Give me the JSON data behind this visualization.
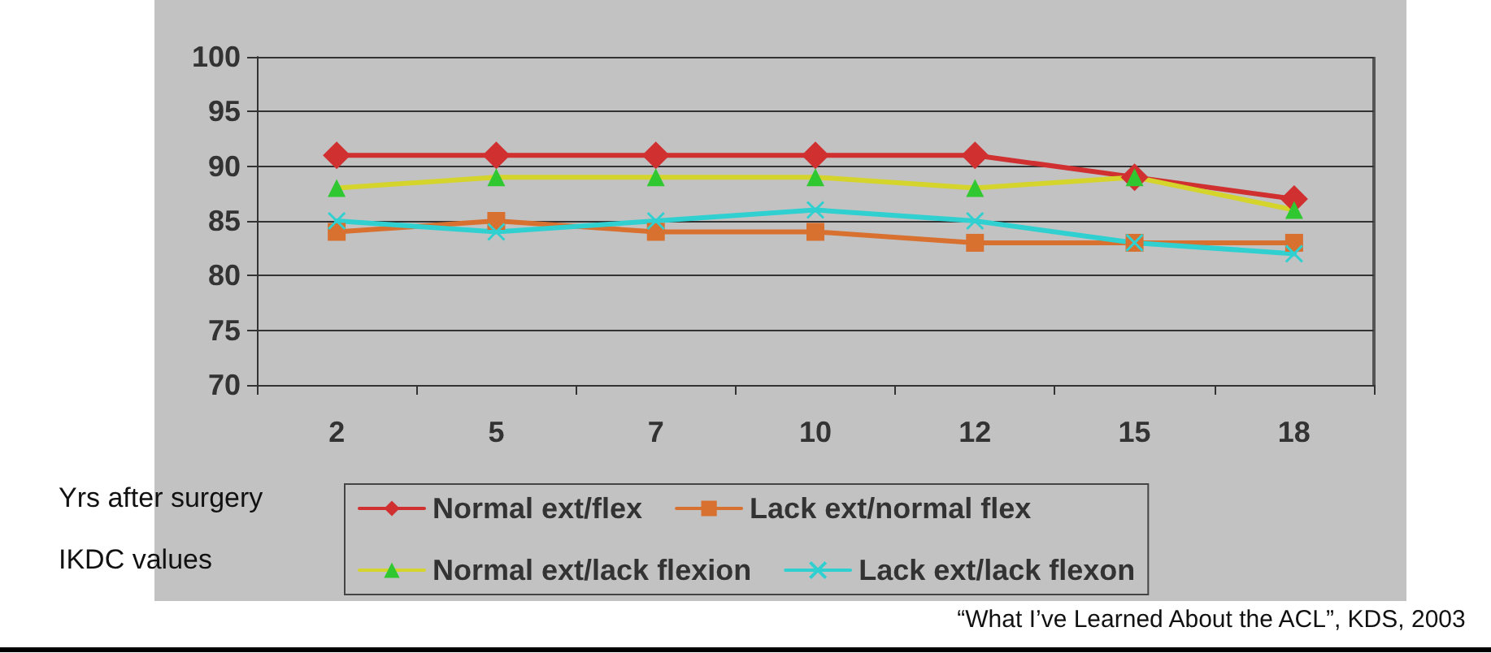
{
  "chart_data": {
    "type": "line",
    "xlabel": "Yrs after surgery",
    "ylabel": "IKDC values",
    "annotations": [
      "“What I’ve Learned About the ACL”, KDS, 2003"
    ],
    "categories": [
      "2",
      "5",
      "7",
      "10",
      "12",
      "15",
      "18"
    ],
    "series": [
      {
        "name": "Normal ext/flex",
        "color": "#d03030",
        "marker": "diamond",
        "values": [
          91,
          91,
          91,
          91,
          91,
          89,
          87
        ]
      },
      {
        "name": "Lack ext/normal flex",
        "color": "#d87030",
        "marker": "square",
        "values": [
          84,
          85,
          84,
          84,
          83,
          83,
          83
        ]
      },
      {
        "name": "Normal ext/lack flexion",
        "color": "#d4d42c",
        "colors": [
          "#30c830",
          "#30c830",
          "#30c830",
          "#30c830",
          "#30c830",
          "#30c830",
          "#30c830"
        ],
        "marker": "triangle",
        "values": [
          88,
          89,
          89,
          89,
          88,
          89,
          86
        ]
      },
      {
        "name": "Lack ext/lack flexon",
        "color": "#30d0d0",
        "marker": "cross",
        "values": [
          85,
          84,
          85,
          86,
          85,
          83,
          82
        ]
      }
    ],
    "ylim": [
      70,
      100
    ],
    "yticks": [
      70,
      75,
      80,
      85,
      90,
      95,
      100
    ],
    "grid": "y",
    "legend": "bottom",
    "line_style": "solid"
  }
}
